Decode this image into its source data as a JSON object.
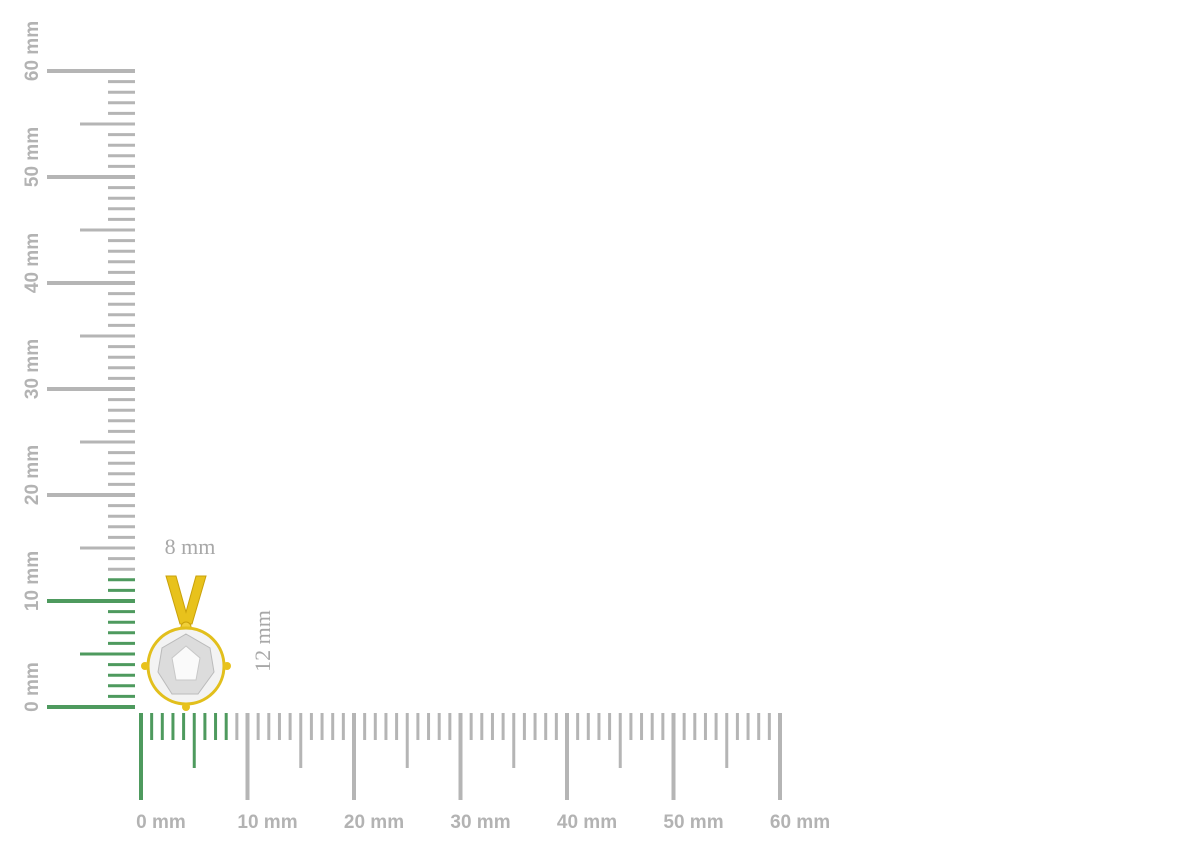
{
  "vertical_ruler": {
    "labels": [
      "0 mm",
      "10 mm",
      "20 mm",
      "30 mm",
      "40 mm",
      "50 mm",
      "60 mm"
    ]
  },
  "horizontal_ruler": {
    "labels": [
      "0 mm",
      "10 mm",
      "20 mm",
      "30 mm",
      "40 mm",
      "50 mm",
      "60 mm"
    ]
  },
  "dimensions": {
    "width": "8 mm",
    "height": "12 mm"
  }
}
